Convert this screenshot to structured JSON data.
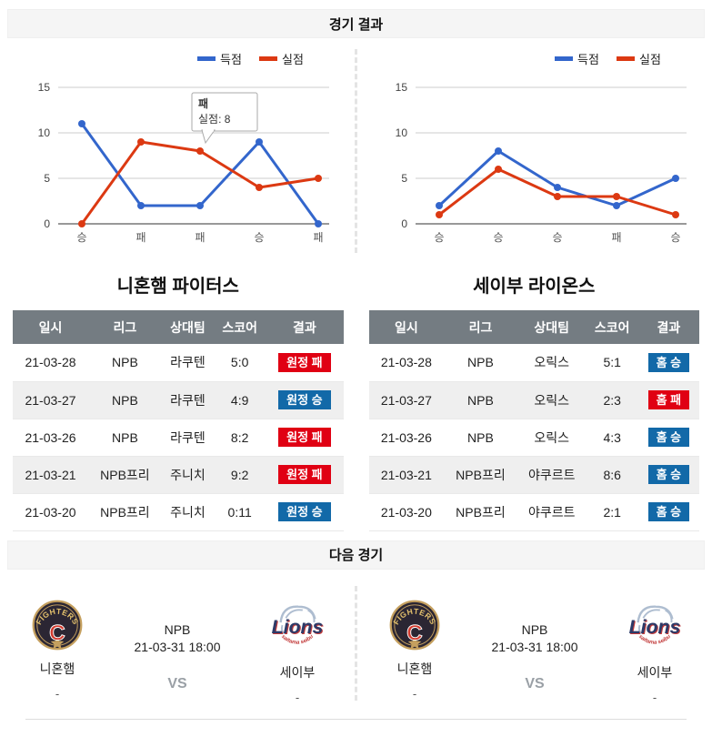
{
  "sections": {
    "results": "경기 결과",
    "next": "다음 경기"
  },
  "colors": {
    "score_line": "#3366cc",
    "concede_line": "#dc3912",
    "win_badge": "#1269a8",
    "loss_badge": "#e00013",
    "table_header_bg": "#747c82",
    "grid": "#cccccc",
    "axis": "#333333"
  },
  "chart_data": [
    {
      "type": "line",
      "x": [
        "승",
        "패",
        "패",
        "승",
        "패"
      ],
      "series": [
        {
          "name": "득점",
          "color": "#3366cc",
          "values": [
            11,
            2,
            2,
            9,
            0
          ]
        },
        {
          "name": "실점",
          "color": "#dc3912",
          "values": [
            0,
            9,
            8,
            4,
            5
          ]
        }
      ],
      "ylim": [
        0,
        15
      ],
      "y_ticks": [
        0,
        5,
        10,
        15
      ],
      "grid": true,
      "legend_position": "top-right",
      "tooltip": {
        "series": "실점",
        "index": 2,
        "title": "패",
        "label": "실점: 8"
      }
    },
    {
      "type": "line",
      "x": [
        "승",
        "승",
        "승",
        "패",
        "승"
      ],
      "series": [
        {
          "name": "득점",
          "color": "#3366cc",
          "values": [
            2,
            8,
            4,
            2,
            5
          ]
        },
        {
          "name": "실점",
          "color": "#dc3912",
          "values": [
            1,
            6,
            3,
            3,
            1
          ]
        }
      ],
      "ylim": [
        0,
        15
      ],
      "y_ticks": [
        0,
        5,
        10,
        15
      ],
      "grid": true,
      "legend_position": "top-right"
    }
  ],
  "teams": [
    {
      "name": "니혼햄 파이터스",
      "table": {
        "headers": [
          "일시",
          "리그",
          "상대팀",
          "스코어",
          "결과"
        ],
        "rows": [
          {
            "date": "21-03-28",
            "league": "NPB",
            "opponent": "라쿠텐",
            "score": "5:0",
            "result": "원정 패",
            "result_type": "loss"
          },
          {
            "date": "21-03-27",
            "league": "NPB",
            "opponent": "라쿠텐",
            "score": "4:9",
            "result": "원정 승",
            "result_type": "win"
          },
          {
            "date": "21-03-26",
            "league": "NPB",
            "opponent": "라쿠텐",
            "score": "8:2",
            "result": "원정 패",
            "result_type": "loss"
          },
          {
            "date": "21-03-21",
            "league": "NPB프리",
            "opponent": "주니치",
            "score": "9:2",
            "result": "원정 패",
            "result_type": "loss"
          },
          {
            "date": "21-03-20",
            "league": "NPB프리",
            "opponent": "주니치",
            "score": "0:11",
            "result": "원정 승",
            "result_type": "win"
          }
        ]
      }
    },
    {
      "name": "세이부 라이온스",
      "table": {
        "headers": [
          "일시",
          "리그",
          "상대팀",
          "스코어",
          "결과"
        ],
        "rows": [
          {
            "date": "21-03-28",
            "league": "NPB",
            "opponent": "오릭스",
            "score": "5:1",
            "result": "홈 승",
            "result_type": "win"
          },
          {
            "date": "21-03-27",
            "league": "NPB",
            "opponent": "오릭스",
            "score": "2:3",
            "result": "홈 패",
            "result_type": "loss"
          },
          {
            "date": "21-03-26",
            "league": "NPB",
            "opponent": "오릭스",
            "score": "4:3",
            "result": "홈 승",
            "result_type": "win"
          },
          {
            "date": "21-03-21",
            "league": "NPB프리",
            "opponent": "야쿠르트",
            "score": "8:6",
            "result": "홈 승",
            "result_type": "win"
          },
          {
            "date": "21-03-20",
            "league": "NPB프리",
            "opponent": "야쿠르트",
            "score": "2:1",
            "result": "홈 승",
            "result_type": "win"
          }
        ]
      }
    }
  ],
  "logos": {
    "fighters": {
      "arc_text": "FIGHTERS",
      "letter": "C"
    },
    "lions": {
      "text": "Lions",
      "sub_text": "saitama seibu"
    }
  },
  "next_games": [
    {
      "league": "NPB",
      "datetime": "21-03-31 18:00",
      "vs": "VS",
      "home": {
        "name": "니혼햄",
        "sub": "-",
        "logo": "fighters-logo"
      },
      "away": {
        "name": "세이부",
        "sub": "-",
        "logo": "lions-logo"
      }
    },
    {
      "league": "NPB",
      "datetime": "21-03-31 18:00",
      "vs": "VS",
      "home": {
        "name": "니혼햄",
        "sub": "-",
        "logo": "fighters-logo"
      },
      "away": {
        "name": "세이부",
        "sub": "-",
        "logo": "lions-logo"
      }
    }
  ]
}
